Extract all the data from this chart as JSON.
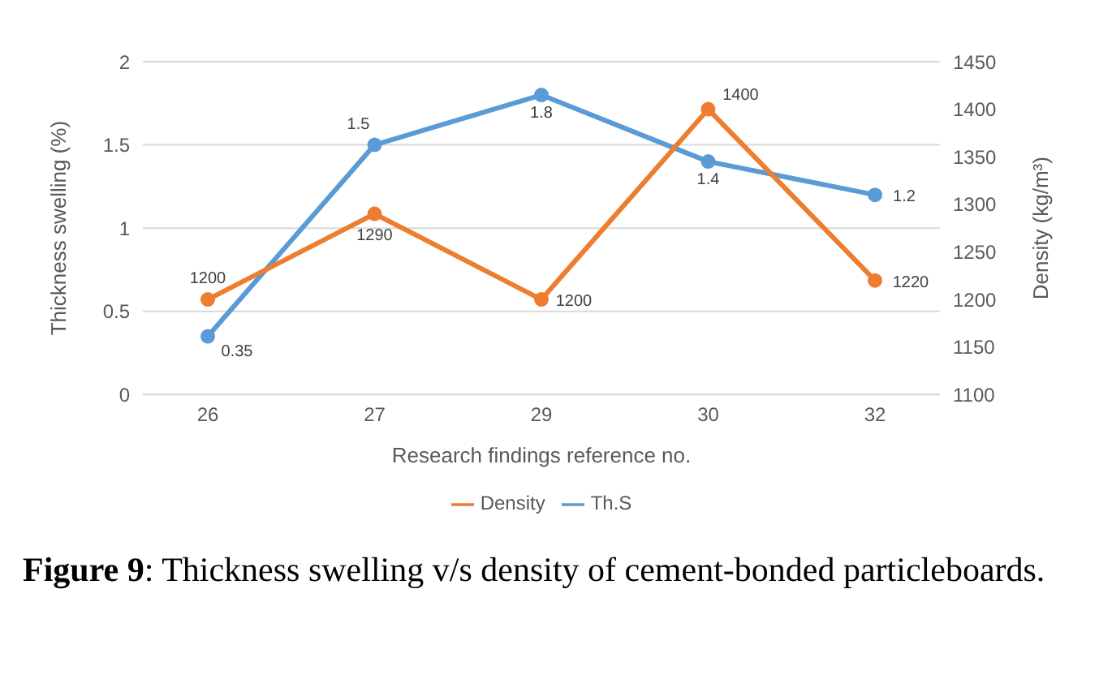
{
  "chart_data": {
    "type": "line",
    "categories": [
      "26",
      "27",
      "29",
      "30",
      "32"
    ],
    "series": [
      {
        "name": "Th.S",
        "color": "#5b9bd5",
        "values": [
          0.35,
          1.5,
          1.8,
          1.4,
          1.2
        ]
      },
      {
        "name": "Density",
        "color": "#ed7d31",
        "values": [
          1200,
          1290,
          1200,
          1400,
          1220
        ],
        "axis": "y2"
      }
    ],
    "xlabel": "Research findings reference no.",
    "ylabel": "Thickness swelling (%)",
    "y2label": "Density (kg/m³)",
    "ylim": [
      0,
      2
    ],
    "yticks": [
      0,
      0.5,
      1,
      1.5,
      2
    ],
    "y2lim": [
      1100,
      1450
    ],
    "y2ticks": [
      1100,
      1150,
      1200,
      1250,
      1300,
      1350,
      1400,
      1450
    ],
    "grid": "y",
    "legend": "bottom",
    "marker": "circle",
    "line_style": "solid",
    "data_labels": true,
    "annotations": [
      "Figure 9: Thickness swelling v/s density of cement-bonded particleboards."
    ]
  }
}
